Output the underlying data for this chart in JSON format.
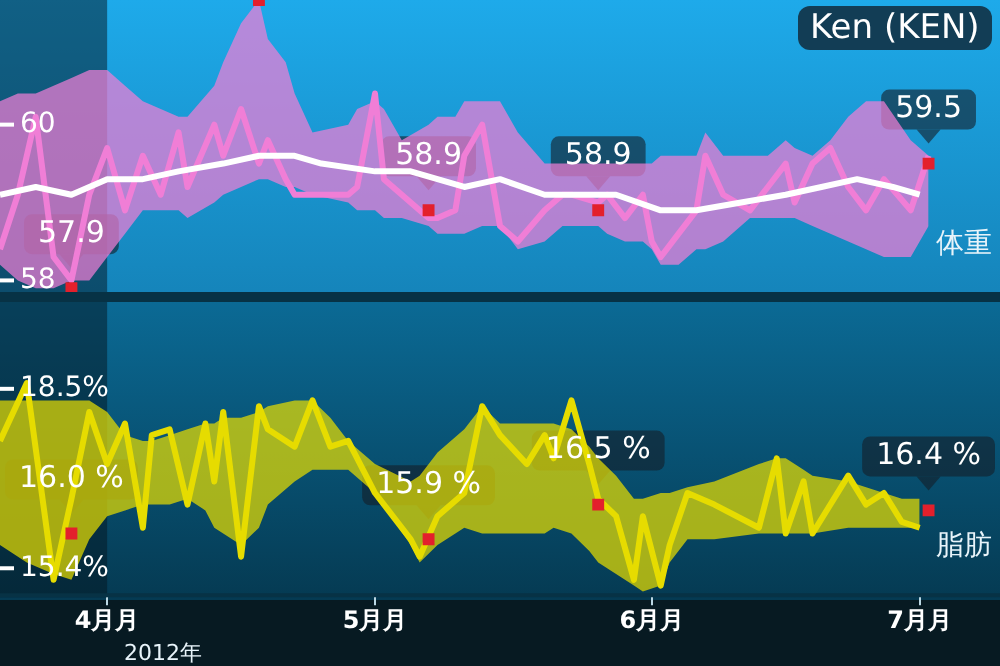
{
  "chart_data": [
    {
      "type": "line",
      "title": "Ken (KEN)",
      "ylabel": "体重",
      "xlim": [
        "--03-20",
        "--07-10"
      ],
      "ylim": [
        57.8,
        61.6
      ],
      "yticks": [
        58,
        60
      ],
      "tick_labels": "y",
      "grid": false,
      "legend": false,
      "bands": [
        {
          "axis": "x",
          "from": "--03-20",
          "to": "--04-01",
          "color": "#04161f"
        }
      ],
      "series": [
        {
          "type": "line",
          "color": "#f07ed6",
          "marker": "none",
          "x": [
            "--03-20",
            "--03-22",
            "--03-24",
            "--03-26",
            "--03-28",
            "--03-30",
            "--04-01",
            "--04-03",
            "--04-05",
            "--04-07",
            "--04-09",
            "--04-10",
            "--04-13",
            "--04-14",
            "--04-16",
            "--04-18",
            "--04-19",
            "--04-21",
            "--04-22",
            "--04-24",
            "--04-28",
            "--04-29",
            "--05-01",
            "--05-02",
            "--05-04",
            "--05-07",
            "--05-08",
            "--05-10",
            "--05-11",
            "--05-13",
            "--05-15",
            "--05-17",
            "--05-20",
            "--05-22",
            "--05-23",
            "--05-26",
            "--05-27",
            "--05-29",
            "--05-31",
            "--06-01",
            "--06-02",
            "--06-04",
            "--06-06",
            "--06-07",
            "--06-09",
            "--06-12",
            "--06-14",
            "--06-16",
            "--06-17",
            "--06-19",
            "--06-21",
            "--06-23",
            "--06-25",
            "--06-27",
            "--06-30",
            "--07-02"
          ],
          "values": [
            58.4,
            59.1,
            60.1,
            58.3,
            58.0,
            59.1,
            59.7,
            58.9,
            59.6,
            59.1,
            59.9,
            59.2,
            60.0,
            59.6,
            60.2,
            59.5,
            59.8,
            59.3,
            59.1,
            59.1,
            59.1,
            59.2,
            60.4,
            59.3,
            59.1,
            58.8,
            58.8,
            58.9,
            59.6,
            60.0,
            58.7,
            58.5,
            58.9,
            59.1,
            59.1,
            59.0,
            59.1,
            58.8,
            59.1,
            58.5,
            58.3,
            58.6,
            58.9,
            59.6,
            59.1,
            58.9,
            59.2,
            59.5,
            59.0,
            59.5,
            59.7,
            59.2,
            58.9,
            59.3,
            58.9,
            59.6
          ],
          "upper": [
            60.3,
            60.4,
            60.4,
            60.5,
            60.6,
            60.7,
            60.7,
            60.5,
            60.3,
            60.2,
            60.1,
            60.1,
            60.5,
            60.8,
            61.3,
            61.6,
            61.1,
            60.8,
            60.4,
            59.9,
            60.0,
            60.2,
            60.3,
            60.2,
            59.8,
            60.0,
            60.1,
            60.1,
            60.3,
            60.3,
            60.3,
            59.9,
            59.5,
            59.5,
            59.5,
            59.5,
            59.5,
            59.5,
            59.5,
            59.5,
            59.6,
            59.6,
            59.6,
            59.9,
            59.6,
            59.6,
            59.6,
            59.8,
            59.7,
            59.6,
            59.8,
            60.1,
            60.3,
            60.3,
            59.8,
            59.6
          ],
          "lower": [
            58.2,
            58.0,
            57.9,
            57.9,
            58.0,
            58.0,
            58.3,
            58.6,
            58.9,
            58.9,
            58.9,
            58.8,
            59.0,
            59.1,
            59.2,
            59.3,
            59.3,
            59.2,
            59.2,
            59.1,
            59.0,
            58.9,
            58.9,
            58.8,
            58.8,
            58.7,
            58.6,
            58.6,
            58.6,
            58.7,
            58.7,
            58.4,
            58.5,
            58.7,
            58.7,
            58.7,
            58.6,
            58.5,
            58.5,
            58.4,
            58.2,
            58.2,
            58.4,
            58.4,
            58.5,
            58.8,
            58.8,
            58.8,
            58.8,
            58.7,
            58.6,
            58.5,
            58.4,
            58.3,
            58.3,
            58.7
          ]
        },
        {
          "type": "line",
          "color": "#ffffff",
          "marker": "none",
          "x": [
            "--03-20",
            "--03-24",
            "--03-28",
            "--04-01",
            "--04-05",
            "--04-09",
            "--04-14",
            "--04-18",
            "--04-22",
            "--04-25",
            "--05-01",
            "--05-05",
            "--05-11",
            "--05-15",
            "--05-20",
            "--05-24",
            "--05-28",
            "--06-02",
            "--06-06",
            "--06-11",
            "--06-16",
            "--06-20",
            "--06-24",
            "--06-28",
            "--07-01"
          ],
          "values": [
            59.1,
            59.2,
            59.1,
            59.3,
            59.3,
            59.4,
            59.5,
            59.6,
            59.6,
            59.5,
            59.4,
            59.4,
            59.2,
            59.3,
            59.1,
            59.1,
            59.1,
            58.9,
            58.9,
            59.0,
            59.1,
            59.2,
            59.3,
            59.2,
            59.1
          ]
        },
        {
          "type": "scatter",
          "color": "#e3202c",
          "marker": "square",
          "x": [
            "--03-28",
            "--04-18",
            "--05-07",
            "--05-26",
            "--07-02"
          ],
          "values": [
            57.9,
            61.6,
            58.9,
            58.9,
            59.5
          ],
          "value_labels": [
            "57.9",
            null,
            "58.9",
            "58.9",
            "59.5"
          ]
        }
      ]
    },
    {
      "type": "line",
      "ylabel": "脂肪",
      "xlim": [
        "--03-20",
        "--07-10"
      ],
      "ylim": [
        14.9,
        20.0
      ],
      "yticks": [
        {
          "value": 18.5,
          "label": "18.5%"
        },
        {
          "value": 15.4,
          "label": "15.4%"
        }
      ],
      "xticks": [
        {
          "value": "--04-01",
          "label": "4月月"
        },
        {
          "value": "--05-01",
          "label": "5月月"
        },
        {
          "value": "--06-01",
          "label": "6月月"
        },
        {
          "value": "--07-01",
          "label": "7月月"
        }
      ],
      "annotations": [
        "2012年"
      ],
      "grid": false,
      "legend": false,
      "bands": [
        {
          "axis": "x",
          "from": "--03-20",
          "to": "--04-01",
          "color": "#04161f"
        }
      ],
      "series": [
        {
          "type": "line",
          "color": "#e6dc00",
          "marker": "none",
          "x": [
            "--03-20",
            "--03-23",
            "--03-26",
            "--03-28",
            "--03-30",
            "--04-01",
            "--04-03",
            "--04-05",
            "--04-06",
            "--04-08",
            "--04-10",
            "--04-12",
            "--04-13",
            "--04-14",
            "--04-16",
            "--04-18",
            "--04-19",
            "--04-22",
            "--04-24",
            "--04-26",
            "--04-28",
            "--05-01",
            "--05-05",
            "--05-06",
            "--05-08",
            "--05-11",
            "--05-13",
            "--05-15",
            "--05-18",
            "--05-20",
            "--05-21",
            "--05-23",
            "--05-25",
            "--05-26",
            "--05-28",
            "--05-30",
            "--05-31",
            "--06-02",
            "--06-03",
            "--06-05",
            "--06-08",
            "--06-13",
            "--06-15",
            "--06-16",
            "--06-18",
            "--06-19",
            "--06-23",
            "--06-25",
            "--06-27",
            "--06-29",
            "--07-01"
          ],
          "values": [
            17.6,
            18.6,
            15.2,
            16.6,
            18.1,
            17.2,
            17.9,
            16.1,
            17.7,
            17.8,
            16.5,
            17.9,
            16.9,
            18.1,
            15.6,
            18.2,
            17.8,
            17.5,
            18.3,
            17.5,
            17.6,
            16.7,
            15.9,
            15.6,
            16.3,
            16.7,
            18.2,
            17.7,
            17.2,
            17.7,
            17.3,
            18.3,
            17.2,
            16.6,
            16.3,
            15.2,
            16.3,
            15.1,
            15.8,
            16.7,
            16.5,
            16.1,
            17.3,
            16.0,
            16.9,
            16.0,
            17.0,
            16.5,
            16.7,
            16.2,
            16.1
          ],
          "upper": [
            18.3,
            18.3,
            18.3,
            18.3,
            18.3,
            18.1,
            17.7,
            17.6,
            17.6,
            17.7,
            17.8,
            17.9,
            17.9,
            18.0,
            18.0,
            18.1,
            18.2,
            18.3,
            18.3,
            18.0,
            17.6,
            17.2,
            16.9,
            17.0,
            17.4,
            17.8,
            18.2,
            17.9,
            17.9,
            17.9,
            17.9,
            17.8,
            17.5,
            17.3,
            17.0,
            16.6,
            16.6,
            16.7,
            16.7,
            16.8,
            16.9,
            17.2,
            17.3,
            17.3,
            17.1,
            17.0,
            16.9,
            16.8,
            16.7,
            16.6,
            16.6
          ],
          "lower": [
            15.8,
            15.5,
            15.3,
            15.2,
            15.9,
            16.3,
            16.4,
            16.5,
            16.5,
            16.5,
            16.6,
            16.4,
            16.1,
            16.0,
            15.8,
            16.1,
            16.5,
            16.9,
            17.1,
            17.1,
            17.1,
            16.7,
            15.8,
            15.5,
            15.8,
            16.1,
            16.0,
            16.0,
            16.0,
            16.0,
            16.1,
            16.0,
            15.7,
            15.5,
            15.3,
            15.1,
            15.0,
            15.1,
            15.5,
            15.9,
            15.9,
            16.0,
            16.0,
            16.0,
            16.0,
            16.0,
            16.1,
            16.1,
            16.1,
            16.1,
            16.1
          ]
        },
        {
          "type": "scatter",
          "color": "#e3202c",
          "marker": "square",
          "x": [
            "--03-28",
            "--05-07",
            "--05-26",
            "--07-02"
          ],
          "values": [
            16.0,
            15.9,
            16.5,
            16.4
          ],
          "value_labels": [
            "16.0 %",
            "15.9 %",
            "16.5 %",
            "16.4 %"
          ]
        }
      ]
    }
  ]
}
